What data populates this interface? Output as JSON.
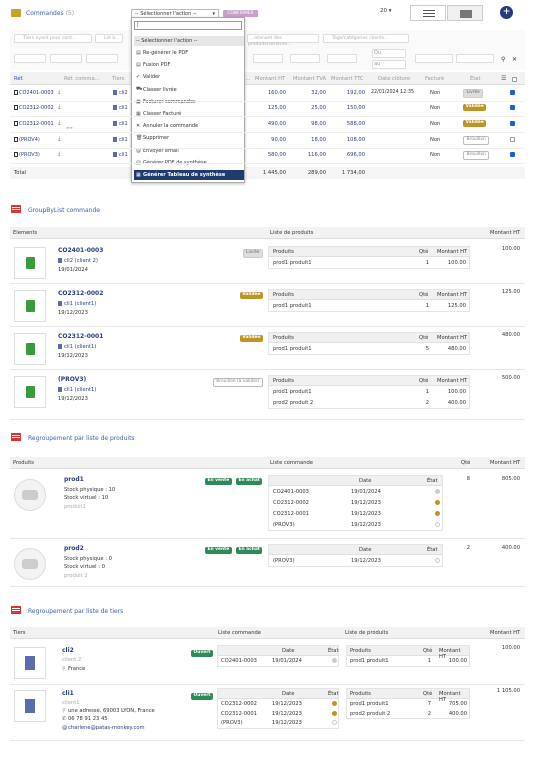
{
  "header": {
    "title": "Commandes",
    "count": "(5)",
    "select_action_label": "-- Sélectionner l'action --",
    "confirm_label": "CONFIRMER",
    "per_page": "20"
  },
  "filters": {
    "third_party_placeholder": "Tiers ayant pour cont...",
    "contact_placeholder": "Lié à...",
    "products_placeholder": "...ntenant des produits/services...",
    "tags_placeholder": "Tags/catégories clients...",
    "from_label": "Du",
    "to_label": "au"
  },
  "columns": {
    "ref": "Réf.",
    "ref_commande": "Réf. comma...",
    "tiers": "Tiers",
    "date_prevue": "...e prévue ...",
    "montant_ht": "Montant HT",
    "montant_tva": "Montant TVA",
    "montant_ttc": "Montant TTC",
    "date_cloture": "Date clôture",
    "facture": "Facturé",
    "etat": "État"
  },
  "orders": [
    {
      "ref": "CO2401-0003",
      "tiers": "cli2",
      "ht": "160,00",
      "tva": "32,00",
      "ttc": "192,00",
      "cloture": "22/01/2024 12:35",
      "facture": "Non",
      "etat": "Livrée",
      "checked": true
    },
    {
      "ref": "CO2312-0002",
      "tiers": "cli1",
      "ht": "125,00",
      "tva": "25,00",
      "ttc": "150,00",
      "cloture": "",
      "facture": "Non",
      "etat": "Validée",
      "checked": true
    },
    {
      "ref": "CO2312-0001",
      "tiers": "cli1",
      "ht": "490,00",
      "tva": "98,00",
      "ttc": "588,00",
      "cloture": "",
      "facture": "Non",
      "etat": "Validée",
      "checked": true
    },
    {
      "ref": "(PROV4)",
      "tiers": "cli1",
      "ht": "90,00",
      "tva": "18,00",
      "ttc": "108,00",
      "cloture": "",
      "facture": "Non",
      "etat": "Brouillon",
      "checked": false
    },
    {
      "ref": "(PROV3)",
      "tiers": "cli1",
      "ht": "580,00",
      "tva": "116,00",
      "ttc": "696,00",
      "cloture": "",
      "facture": "Non",
      "etat": "Brouillon",
      "checked": true
    }
  ],
  "totals": {
    "label": "Total",
    "ht": "1 445,00",
    "tva": "289,00",
    "ttc": "1 734,00"
  },
  "menu": {
    "search_value": "|",
    "items": [
      {
        "label": "-- Sélectionner l'action --",
        "icon": ""
      },
      {
        "label": "Re-générer le PDF",
        "icon": "pdf-icon"
      },
      {
        "label": "Fusion PDF",
        "icon": "pdf-icon"
      },
      {
        "label": "Valider",
        "icon": "check-icon"
      },
      {
        "label": "Classer livrée",
        "icon": "truck-icon"
      },
      {
        "label": "Facturer commandes",
        "icon": "invoice-icon"
      },
      {
        "label": "Classer Facturé",
        "icon": "invoice-icon"
      },
      {
        "label": "Annuler la commande",
        "icon": "close-icon"
      },
      {
        "label": "Supprimer",
        "icon": "trash-icon"
      },
      {
        "label": "Envoyer email",
        "icon": "email-icon"
      },
      {
        "label": "Générer PDF de synthèse",
        "icon": "pdf-icon"
      },
      {
        "label": "Générer Tableau de synthèse",
        "icon": "table-icon"
      }
    ]
  },
  "groupby": {
    "title": "GroupByList commande",
    "col_elements": "Elements",
    "col_liste_produits": "Liste de produits",
    "col_montant": "Montant HT",
    "sub_produits": "Produits",
    "sub_qte": "Qté",
    "sub_montant": "Montant HT",
    "items": [
      {
        "ref": "CO2401-0003",
        "client": "cli2 (client 2)",
        "date": "19/01/2024",
        "etat": "Livrée",
        "total": "100.00",
        "lines": [
          {
            "p": "prod1 produit1",
            "q": "1",
            "m": "100.00"
          }
        ]
      },
      {
        "ref": "CO2312-0002",
        "client": "cli1 (client1)",
        "date": "19/12/2023",
        "etat": "Validée",
        "total": "125.00",
        "lines": [
          {
            "p": "prod1 produit1",
            "q": "1",
            "m": "125.00"
          }
        ]
      },
      {
        "ref": "CO2312-0001",
        "client": "cli1 (client1)",
        "date": "19/12/2023",
        "etat": "Validée",
        "total": "480.00",
        "lines": [
          {
            "p": "prod1 produit1",
            "q": "5",
            "m": "480.00"
          }
        ]
      },
      {
        "ref": "(PROV3)",
        "client": "cli1 (client1)",
        "date": "19/12/2023",
        "etat": "Brouillon (à valider)",
        "total": "500.00",
        "lines": [
          {
            "p": "prod1 produit1",
            "q": "1",
            "m": "100.00"
          },
          {
            "p": "prod2 produit 2",
            "q": "2",
            "m": "400.00"
          }
        ]
      }
    ]
  },
  "byproduct": {
    "title": "Regroupement par liste de produits",
    "col_produits": "Produits",
    "col_liste": "Liste commande",
    "col_qte": "Qté",
    "col_montant": "Montant HT",
    "sub_date": "Date",
    "sub_etat": "État",
    "items": [
      {
        "ref": "prod1",
        "stock_phys": "Stock physique : 10",
        "stock_virt": "Stock virtuel : 10",
        "label": "produit1",
        "vente": "En vente",
        "achat": "En achat",
        "qte": "8",
        "montant": "805.00",
        "orders": [
          {
            "r": "CO2401-0003",
            "d": "19/01/2024",
            "s": "grey"
          },
          {
            "r": "CO2312-0002",
            "d": "19/12/2023",
            "s": "gold"
          },
          {
            "r": "CO2312-0001",
            "d": "19/12/2023",
            "s": "gold"
          },
          {
            "r": "(PROV3)",
            "d": "19/12/2023",
            "s": "empty"
          }
        ]
      },
      {
        "ref": "prod2",
        "stock_phys": "Stock physique : 0",
        "stock_virt": "Stock virtuel : 0",
        "label": "produit 2",
        "vente": "En vente",
        "achat": "En achat",
        "qte": "2",
        "montant": "400.00",
        "orders": [
          {
            "r": "(PROV3)",
            "d": "19/12/2023",
            "s": "empty"
          }
        ]
      }
    ]
  },
  "bytiers": {
    "title": "Regroupement par liste de tiers",
    "col_tiers": "Tiers",
    "col_liste": "Liste commande",
    "col_liste_produits": "Liste de produits",
    "col_montant": "Montant HT",
    "items": [
      {
        "name": "cli2",
        "sub": "client 2",
        "country": "France",
        "status": "Ouvert",
        "total": "100.00",
        "orders": [
          {
            "r": "CO2401-0003",
            "d": "19/01/2024",
            "s": "grey"
          }
        ],
        "products": [
          {
            "p": "prod1 produit1",
            "q": "1",
            "m": "100.00"
          }
        ]
      },
      {
        "name": "cli1",
        "sub": "client1",
        "address": "une adresse, 69003 LYON, France",
        "phone": "06 78 91 23 45",
        "email": "charlene@patas-monkey.com",
        "status": "Ouvert",
        "total": "1 105.00",
        "orders": [
          {
            "r": "CO2312-0002",
            "d": "19/12/2023",
            "s": "gold"
          },
          {
            "r": "CO2312-0001",
            "d": "19/12/2023",
            "s": "gold"
          },
          {
            "r": "(PROV3)",
            "d": "19/12/2023",
            "s": "empty"
          }
        ],
        "products": [
          {
            "p": "prod1 produit1",
            "q": "7",
            "m": "705.00"
          },
          {
            "p": "prod2 produit 2",
            "q": "2",
            "m": "400.00"
          }
        ]
      }
    ]
  }
}
